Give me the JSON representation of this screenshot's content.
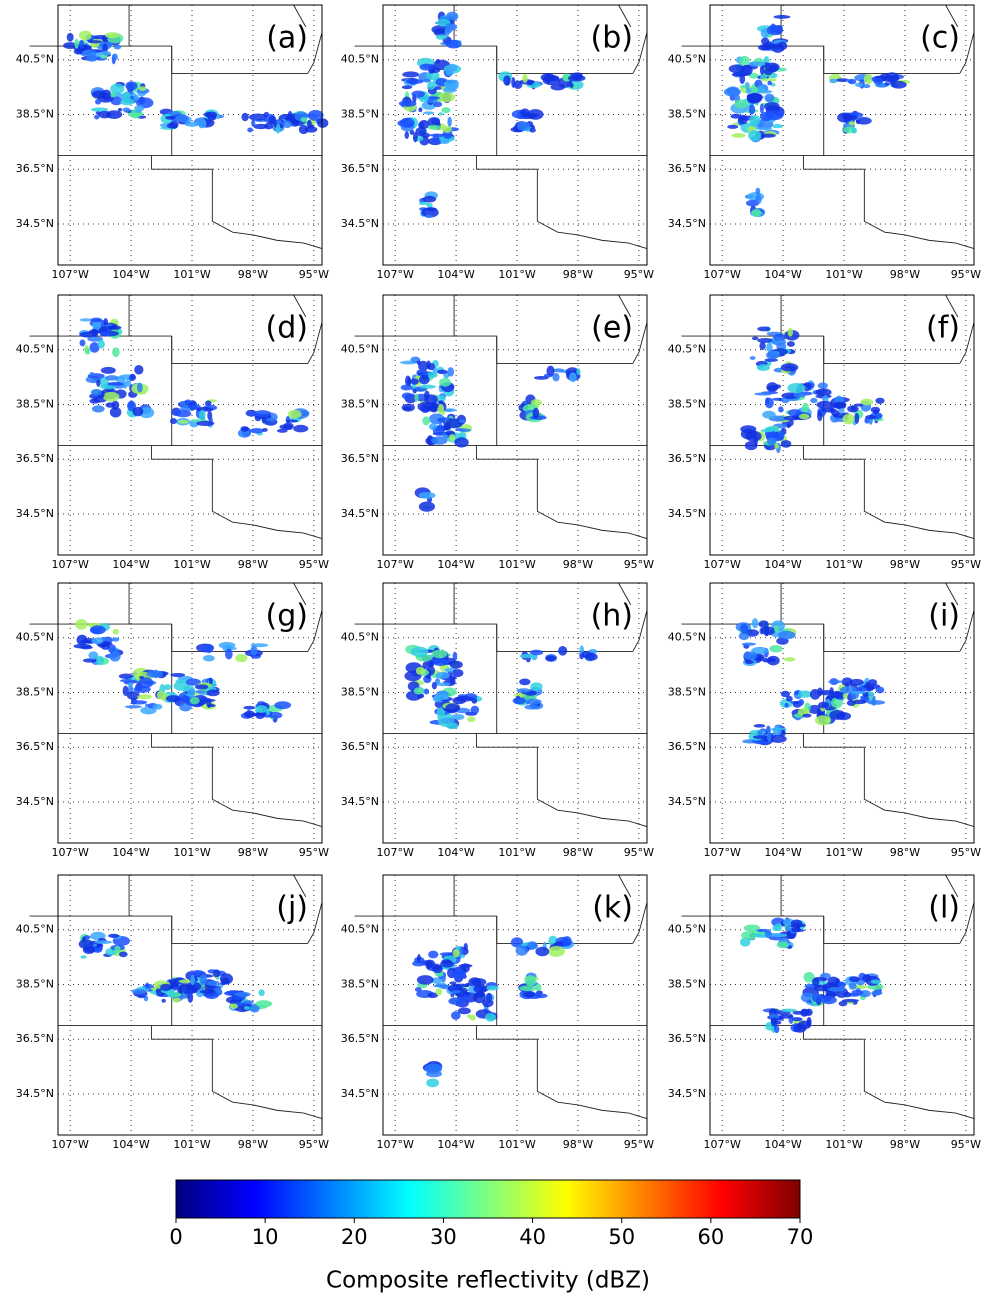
{
  "panels": [
    {
      "label": "(a)"
    },
    {
      "label": "(b)"
    },
    {
      "label": "(c)"
    },
    {
      "label": "(d)"
    },
    {
      "label": "(e)"
    },
    {
      "label": "(f)"
    },
    {
      "label": "(g)"
    },
    {
      "label": "(h)"
    },
    {
      "label": "(i)"
    },
    {
      "label": "(j)"
    },
    {
      "label": "(k)"
    },
    {
      "label": "(l)"
    }
  ],
  "map": {
    "xlim": [
      -107.6,
      -94.6
    ],
    "ylim": [
      33.0,
      42.5
    ],
    "xticks": [
      {
        "value": -107,
        "label": "107°W"
      },
      {
        "value": -104,
        "label": "104°W"
      },
      {
        "value": -101,
        "label": "101°W"
      },
      {
        "value": -98,
        "label": "98°W"
      },
      {
        "value": -95,
        "label": "95°W"
      }
    ],
    "yticks": [
      {
        "value": 34.5,
        "label": "34.5°N"
      },
      {
        "value": 36.5,
        "label": "36.5°N"
      },
      {
        "value": 38.5,
        "label": "38.5°N"
      },
      {
        "value": 40.5,
        "label": "40.5°N"
      }
    ],
    "grid": true
  },
  "colorbar": {
    "label": "Composite reflectivity (dBZ)",
    "lim": [
      0,
      70
    ],
    "ticks": [
      0,
      10,
      20,
      30,
      40,
      50,
      60,
      70
    ],
    "colors": [
      "#00007f",
      "#0000ff",
      "#007fff",
      "#00ffff",
      "#7fff7f",
      "#ffff00",
      "#ff7f00",
      "#ff0000",
      "#7f0000"
    ]
  }
}
